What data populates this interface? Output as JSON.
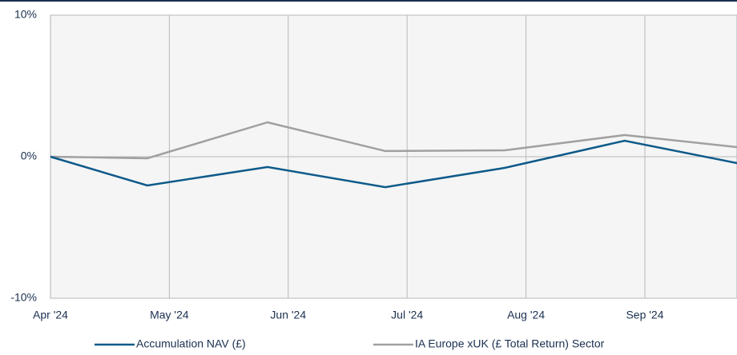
{
  "chart_data": {
    "type": "line",
    "x": [
      0,
      0.815,
      1.826,
      2.817,
      3.82,
      4.83,
      5.775
    ],
    "xlim": [
      0,
      5.775
    ],
    "xticks": [
      {
        "value": 0,
        "label": "Apr '24"
      },
      {
        "value": 1,
        "label": "May '24"
      },
      {
        "value": 2,
        "label": "Jun '24"
      },
      {
        "value": 3,
        "label": "Jul '24"
      },
      {
        "value": 4,
        "label": "Aug '24"
      },
      {
        "value": 5,
        "label": "Sep '24"
      }
    ],
    "ylim": [
      -10,
      10
    ],
    "yticks": [
      {
        "value": -10,
        "label": "-10%"
      },
      {
        "value": 0,
        "label": "0%"
      },
      {
        "value": 10,
        "label": "10%"
      }
    ],
    "grid": true,
    "legend": "bottom",
    "series": [
      {
        "name": "Accumulation NAV (£)",
        "color": "#0e5a8a",
        "values": [
          0,
          -2.03,
          -0.73,
          -2.15,
          -0.79,
          1.13,
          -0.45
        ]
      },
      {
        "name": "IA Europe xUK (£ Total Return) Sector",
        "color": "#a0a0a0",
        "values": [
          0,
          -0.11,
          2.43,
          0.4,
          0.45,
          1.53,
          0.68
        ]
      }
    ]
  }
}
